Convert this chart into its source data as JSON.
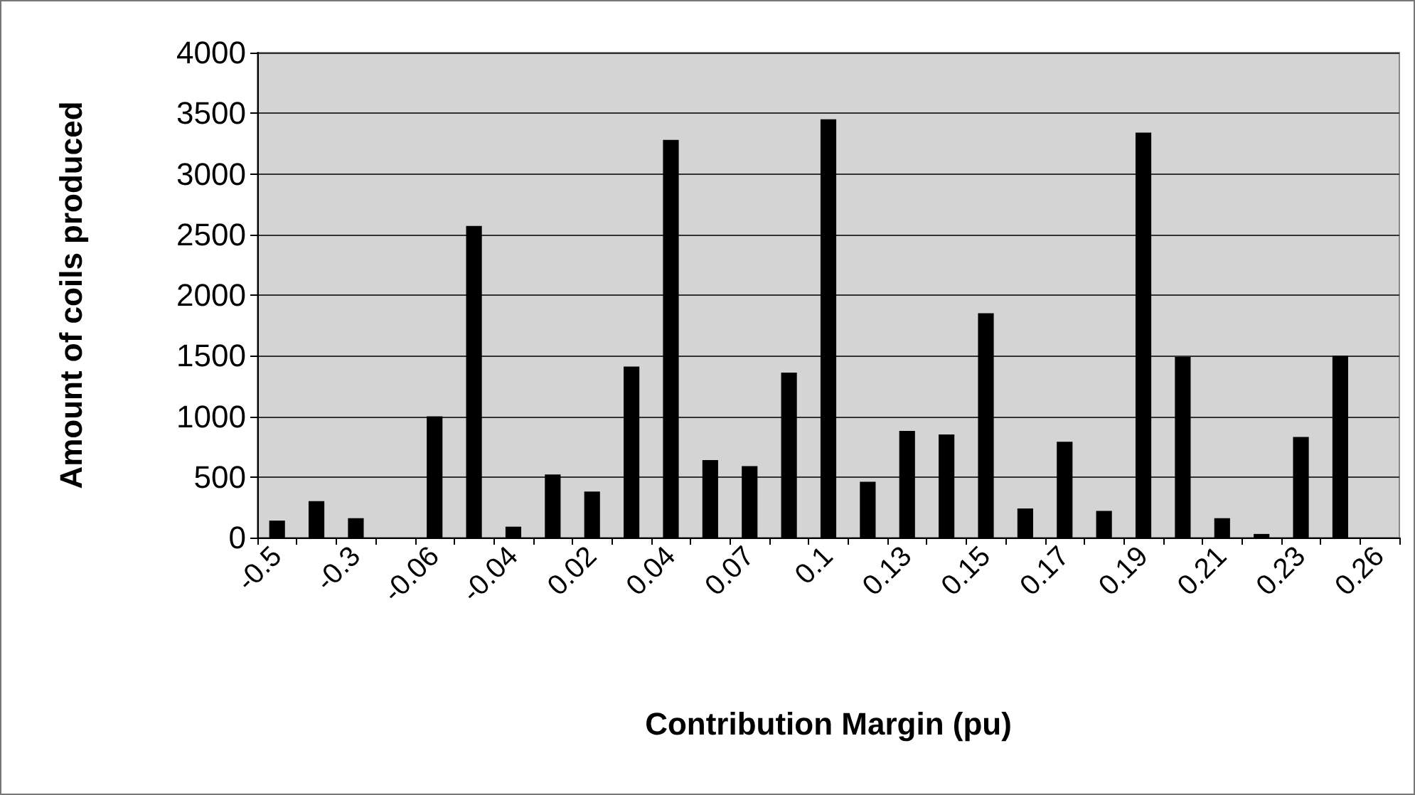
{
  "chart_data": {
    "type": "bar",
    "xlabel": "Contribution Margin (pu)",
    "ylabel": "Amount of coils produced",
    "categories": [
      "-0.5",
      null,
      "-0.3",
      null,
      "-0.06",
      null,
      "-0.04",
      null,
      "0.02",
      null,
      "0.04",
      null,
      "0.07",
      null,
      "0.1",
      null,
      "0.13",
      null,
      "0.15",
      null,
      "0.17",
      null,
      "0.19",
      null,
      "0.21",
      null,
      "0.23",
      null,
      "0.26"
    ],
    "values": [
      140,
      300,
      160,
      0,
      1000,
      2570,
      90,
      520,
      380,
      1410,
      3280,
      640,
      590,
      1360,
      3450,
      460,
      880,
      850,
      1850,
      240,
      790,
      220,
      3340,
      1490,
      160,
      30,
      830,
      1500,
      0
    ],
    "color": "#000000",
    "ylim": [
      0,
      4000
    ],
    "yticks": [
      0,
      500,
      1000,
      1500,
      2000,
      2500,
      3000,
      3500,
      4000
    ],
    "grid": "y"
  }
}
